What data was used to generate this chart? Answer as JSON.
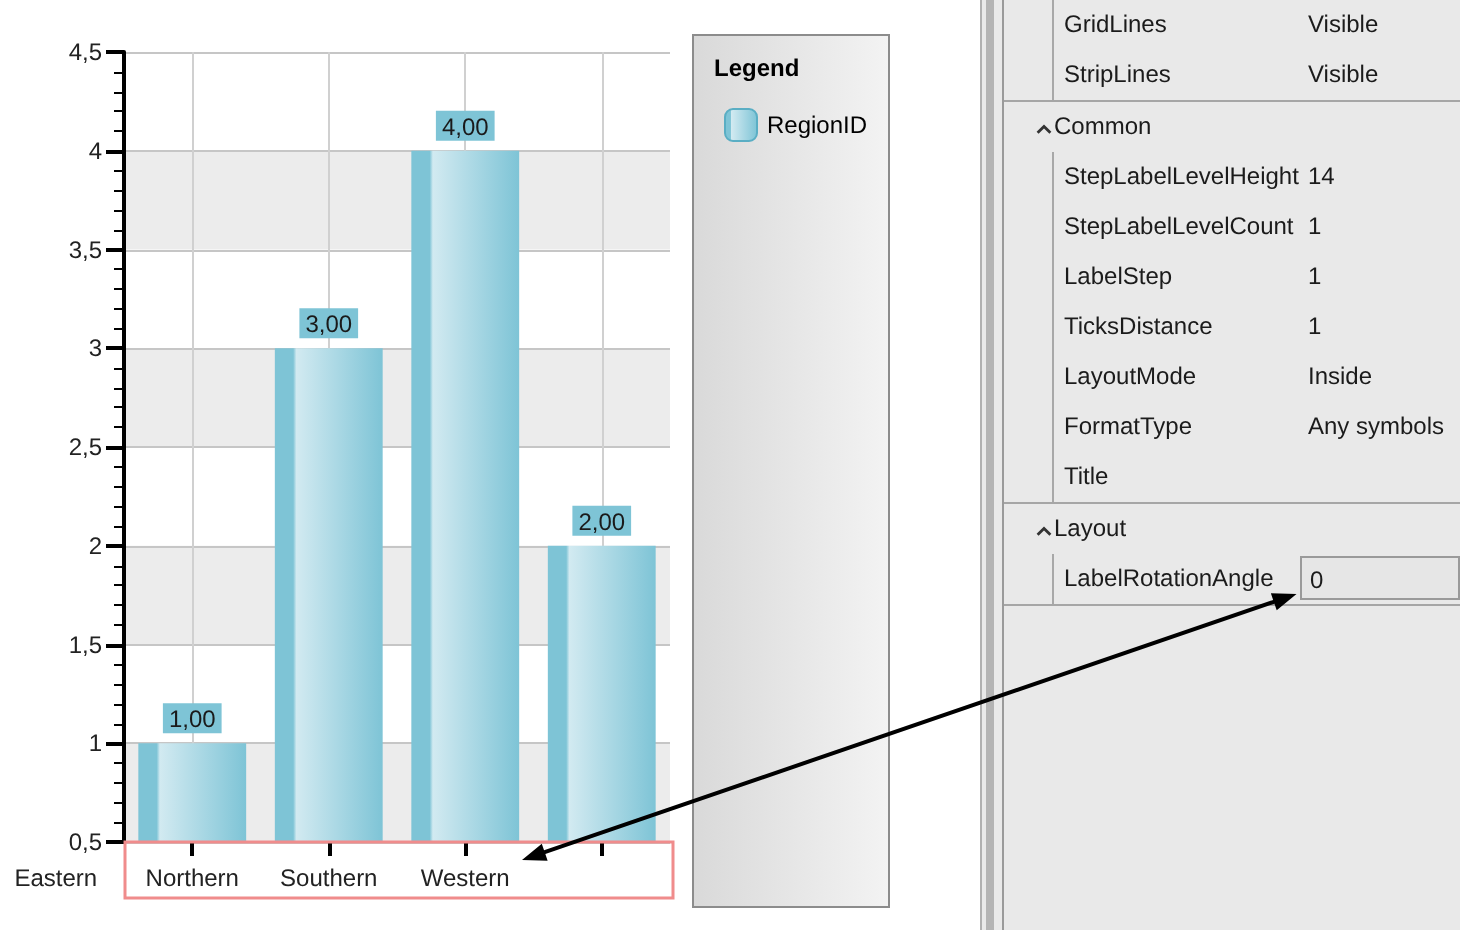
{
  "chart_data": [
    {
      "type": "bar",
      "legend_title": "Legend",
      "categories": [
        "Northern",
        "Southern",
        "Western",
        null
      ],
      "series": [
        {
          "name": "RegionID",
          "color": "#7ec4d6",
          "values": [
            1,
            3,
            4,
            2
          ],
          "value_labels": [
            "1,00",
            "3,00",
            "4,00",
            "2,00"
          ]
        }
      ],
      "ylim": [
        0.5,
        4.5
      ],
      "yticks": [
        {
          "value": 0.5,
          "label": "0,5"
        },
        1,
        {
          "value": 1.5,
          "label": "1,5"
        },
        2,
        {
          "value": 2.5,
          "label": "2,5"
        },
        3,
        {
          "value": 3.5,
          "label": "3,5"
        },
        4,
        {
          "value": 4.5,
          "label": "4,5"
        }
      ],
      "grid": true,
      "legend": "right",
      "annotations": [
        "Eastern"
      ]
    },
    {
      "type": "other",
      "categories": [
        "GridLines",
        "StripLines"
      ],
      "annotations": [
        "Visible",
        "Visible"
      ]
    },
    {
      "type": "other",
      "title": "Common",
      "categories": [
        "StepLabelLevelHeight",
        "StepLabelLevelCount",
        "LabelStep",
        "TicksDistance",
        "LayoutMode",
        "FormatType",
        "Title"
      ],
      "annotations": [
        "14",
        "1",
        "1",
        "1",
        "Inside",
        "Any symbols"
      ]
    },
    {
      "type": "other",
      "title": "Layout",
      "categories": [
        "LabelRotationAngle"
      ],
      "annotations": [
        "0"
      ]
    }
  ]
}
